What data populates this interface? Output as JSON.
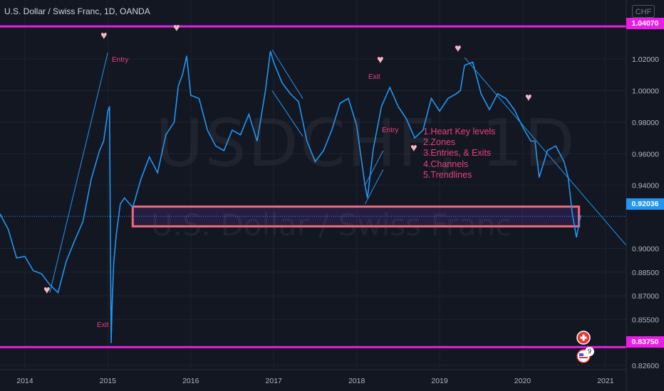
{
  "header": {
    "title": "U.S. Dollar / Swiss Franc, 1D, OANDA",
    "currency": "CHF"
  },
  "watermark": {
    "symbol": "USDCHF, 1D",
    "description": "U.S. Dollar / Swiss Franc"
  },
  "annotations": {
    "entry_1": "Entry",
    "exit_1": "Exit",
    "exit_2": "Exit",
    "entry_2": "Entry",
    "notes": [
      "1.Heart Key levels",
      "2.Zones",
      "3.Entries, & Exits",
      "4.Channels",
      "5.Trendlines"
    ]
  },
  "markers": {
    "bottom_count": "9"
  },
  "colors": {
    "background": "#131722",
    "line": "#2196f3",
    "level_lines": "#e91ee6",
    "zone_border": "#f06a7a",
    "annotation_text": "#e8417a",
    "heart": "#f7b7c8"
  },
  "chart_data": {
    "type": "line",
    "title": "U.S. Dollar / Swiss Franc, 1D, OANDA",
    "xlabel": "",
    "ylabel": "",
    "x_ticks": [
      "2014",
      "2015",
      "2016",
      "2017",
      "2018",
      "2019",
      "2020",
      "2021"
    ],
    "y_ticks": [
      "1.02000",
      "1.00000",
      "0.98000",
      "0.96000",
      "0.94000",
      "0.90000",
      "0.88500",
      "0.87000",
      "0.85500",
      "0.82600"
    ],
    "ylim": [
      0.8232,
      1.0574
    ],
    "xlim": [
      2013.7,
      2021.25
    ],
    "last_price": "0.92036",
    "horizontal_levels": [
      {
        "label": "1.04070",
        "value": 1.0407
      },
      {
        "label": "0.83750",
        "value": 0.8375
      }
    ],
    "zone": {
      "x_from": 2015.3,
      "x_to": 2020.68,
      "y_from": 0.914,
      "y_to": 0.9265
    },
    "series": [
      {
        "x": [
          2013.7,
          2013.8,
          2013.9,
          2014.0,
          2014.1,
          2014.2,
          2014.3,
          2014.4,
          2014.5,
          2014.6,
          2014.7,
          2014.8,
          2014.9,
          2014.95,
          2015.0,
          2015.02,
          2015.04,
          2015.05,
          2015.07,
          2015.1,
          2015.15,
          2015.2,
          2015.3,
          2015.4,
          2015.5,
          2015.6,
          2015.7,
          2015.8,
          2015.85,
          2015.9,
          2015.95,
          2016.0,
          2016.1,
          2016.2,
          2016.3,
          2016.4,
          2016.5,
          2016.6,
          2016.7,
          2016.8,
          2016.9,
          2016.96,
          2017.0,
          2017.1,
          2017.2,
          2017.3,
          2017.4,
          2017.5,
          2017.6,
          2017.7,
          2017.8,
          2017.9,
          2018.0,
          2018.1,
          2018.13,
          2018.2,
          2018.3,
          2018.4,
          2018.5,
          2018.6,
          2018.7,
          2018.8,
          2018.9,
          2019.0,
          2019.1,
          2019.2,
          2019.25,
          2019.3,
          2019.4,
          2019.5,
          2019.6,
          2019.7,
          2019.8,
          2019.9,
          2020.0,
          2020.1,
          2020.15,
          2020.2,
          2020.3,
          2020.4,
          2020.5,
          2020.55,
          2020.6,
          2020.65,
          2020.7
        ],
        "values": [
          0.922,
          0.912,
          0.894,
          0.895,
          0.886,
          0.884,
          0.877,
          0.872,
          0.892,
          0.905,
          0.917,
          0.944,
          0.962,
          0.968,
          0.987,
          0.99,
          0.84,
          0.862,
          0.89,
          0.908,
          0.928,
          0.932,
          0.926,
          0.944,
          0.958,
          0.948,
          0.972,
          0.98,
          1.003,
          1.01,
          1.022,
          0.997,
          0.995,
          0.975,
          0.965,
          0.962,
          0.975,
          0.972,
          0.985,
          0.968,
          1.0,
          1.025,
          1.018,
          1.005,
          0.998,
          0.993,
          0.968,
          0.955,
          0.962,
          0.975,
          0.992,
          0.995,
          0.978,
          0.94,
          0.932,
          0.963,
          0.99,
          1.002,
          0.99,
          0.982,
          0.97,
          0.975,
          0.995,
          0.987,
          0.995,
          0.998,
          1.0,
          1.016,
          1.018,
          0.998,
          0.988,
          0.998,
          0.995,
          0.988,
          0.977,
          0.968,
          0.968,
          0.945,
          0.962,
          0.965,
          0.955,
          0.945,
          0.922,
          0.907,
          0.921
        ]
      }
    ]
  }
}
